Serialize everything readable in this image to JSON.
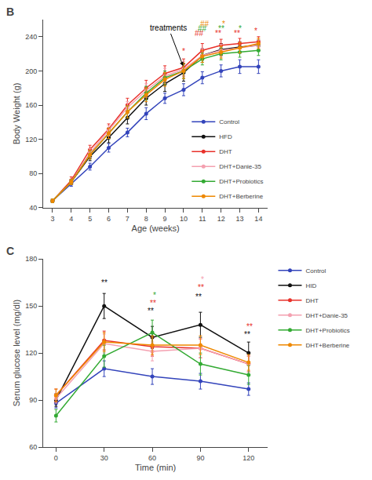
{
  "chart_data": [
    {
      "type": "line",
      "title": "B",
      "x_label": "Age (weeks)",
      "y_label": "Body Weight (g)",
      "x": [
        3,
        4,
        5,
        6,
        7,
        8,
        9,
        10,
        11,
        12,
        13,
        14
      ],
      "xlim": [
        2.5,
        14.5
      ],
      "xticks": [
        3,
        4,
        5,
        6,
        7,
        8,
        9,
        10,
        11,
        12,
        13,
        14
      ],
      "ylim": [
        40,
        260
      ],
      "yticks": [
        40,
        80,
        120,
        160,
        200,
        240
      ],
      "grid": false,
      "legend": "lower right",
      "marker": "circle",
      "series": [
        {
          "name": "Control",
          "color": "#3344bb",
          "values": [
            48,
            68,
            88,
            110,
            128,
            150,
            168,
            178,
            192,
            200,
            205,
            205
          ],
          "errors": [
            2,
            3,
            4,
            5,
            5,
            7,
            6,
            7,
            7,
            7,
            8,
            8
          ]
        },
        {
          "name": "HFD",
          "color": "#111111",
          "values": [
            48,
            70,
            100,
            122,
            145,
            168,
            185,
            198,
            218,
            225,
            228,
            230
          ],
          "errors": [
            2,
            3,
            5,
            6,
            7,
            8,
            9,
            10,
            8,
            7,
            6,
            6
          ]
        },
        {
          "name": "DHT",
          "color": "#e8312a",
          "values": [
            48,
            72,
            108,
            132,
            160,
            180,
            197,
            204,
            224,
            230,
            232,
            234
          ],
          "errors": [
            2,
            4,
            5,
            6,
            8,
            9,
            9,
            10,
            8,
            7,
            6,
            6
          ]
        },
        {
          "name": "DHT+Danie-35",
          "color": "#f4a0b0",
          "values": [
            48,
            70,
            104,
            130,
            157,
            177,
            194,
            202,
            218,
            224,
            227,
            230
          ],
          "errors": [
            2,
            3,
            5,
            6,
            7,
            8,
            9,
            9,
            8,
            7,
            6,
            6
          ]
        },
        {
          "name": "DHT+Probiotics",
          "color": "#33aa33",
          "values": [
            48,
            70,
            102,
            127,
            152,
            174,
            192,
            200,
            214,
            220,
            222,
            224
          ],
          "errors": [
            2,
            3,
            5,
            6,
            7,
            8,
            8,
            9,
            7,
            7,
            6,
            6
          ]
        },
        {
          "name": "DHT+Berberine",
          "color": "#ee8800",
          "values": [
            48,
            70,
            102,
            127,
            152,
            172,
            190,
            200,
            217,
            222,
            227,
            232
          ],
          "errors": [
            2,
            3,
            5,
            6,
            7,
            8,
            8,
            9,
            7,
            7,
            6,
            6
          ]
        }
      ],
      "annotations": [
        {
          "text": "treatments",
          "x": 10,
          "y": 204,
          "text_x": 9.2,
          "text_y": 250
        },
        {
          "text": "*",
          "x": 10,
          "y": 216,
          "color": "#e8312a"
        },
        {
          "text": "##",
          "x": 10.85,
          "y": 237,
          "color": "#e8312a"
        },
        {
          "text": "##",
          "x": 11.0,
          "y": 243,
          "color": "#33aa33"
        },
        {
          "text": "##",
          "x": 11.15,
          "y": 248,
          "color": "#ee8800"
        },
        {
          "text": "**",
          "x": 11.85,
          "y": 237,
          "color": "#e8312a"
        },
        {
          "text": "**",
          "x": 12.0,
          "y": 243,
          "color": "#33aa33"
        },
        {
          "text": "*",
          "x": 12.15,
          "y": 248,
          "color": "#ee8800"
        },
        {
          "text": "**",
          "x": 12.85,
          "y": 237,
          "color": "#e8312a"
        },
        {
          "text": "*",
          "x": 13.0,
          "y": 243,
          "color": "#33aa33"
        },
        {
          "text": "*",
          "x": 13.85,
          "y": 240,
          "color": "#e8312a"
        }
      ]
    },
    {
      "type": "line",
      "title": "C",
      "x_label": "Time (min)",
      "y_label": "Serum glucose level (mg/dl)",
      "x": [
        0,
        30,
        60,
        90,
        120
      ],
      "xlim": [
        -8,
        132
      ],
      "xticks": [
        0,
        30,
        60,
        90,
        120
      ],
      "ylim": [
        60,
        180
      ],
      "yticks": [
        60,
        90,
        120,
        150,
        180
      ],
      "grid": false,
      "legend": "right",
      "marker": "circle",
      "series": [
        {
          "name": "Control",
          "color": "#3344bb",
          "values": [
            88,
            110,
            105,
            102,
            97
          ],
          "errors": [
            3,
            5,
            5,
            5,
            4
          ]
        },
        {
          "name": "HID",
          "color": "#111111",
          "values": [
            90,
            150,
            130,
            138,
            120
          ],
          "errors": [
            4,
            8,
            7,
            8,
            7
          ]
        },
        {
          "name": "DHT",
          "color": "#e8312a",
          "values": [
            93,
            128,
            124,
            123,
            113
          ],
          "errors": [
            4,
            6,
            6,
            6,
            5
          ]
        },
        {
          "name": "DHT+Danie-35",
          "color": "#f4a0b0",
          "values": [
            91,
            126,
            121,
            123,
            113
          ],
          "errors": [
            3,
            6,
            6,
            6,
            5
          ]
        },
        {
          "name": "DHT+Probiotics",
          "color": "#33aa33",
          "values": [
            80,
            118,
            133,
            113,
            106
          ],
          "errors": [
            4,
            7,
            8,
            7,
            6
          ]
        },
        {
          "name": "DHT+Berberine",
          "color": "#ee8800",
          "values": [
            93,
            127,
            125,
            125,
            114
          ],
          "errors": [
            4,
            6,
            6,
            6,
            5
          ]
        }
      ],
      "annotations": [
        {
          "text": "**",
          "x": 30,
          "y": 161,
          "color": "#111111"
        },
        {
          "text": "**",
          "x": 59,
          "y": 143,
          "color": "#111111"
        },
        {
          "text": "**",
          "x": 60.5,
          "y": 148,
          "color": "#e8312a"
        },
        {
          "text": "*",
          "x": 61.5,
          "y": 153,
          "color": "#33aa33"
        },
        {
          "text": "**",
          "x": 89,
          "y": 152,
          "color": "#111111"
        },
        {
          "text": "**",
          "x": 90.5,
          "y": 158,
          "color": "#e8312a"
        },
        {
          "text": "*",
          "x": 91.5,
          "y": 163,
          "color": "#f4a0b0"
        },
        {
          "text": "**",
          "x": 119,
          "y": 128,
          "color": "#111111"
        },
        {
          "text": "**",
          "x": 120.5,
          "y": 133,
          "color": "#e8312a"
        }
      ]
    }
  ]
}
